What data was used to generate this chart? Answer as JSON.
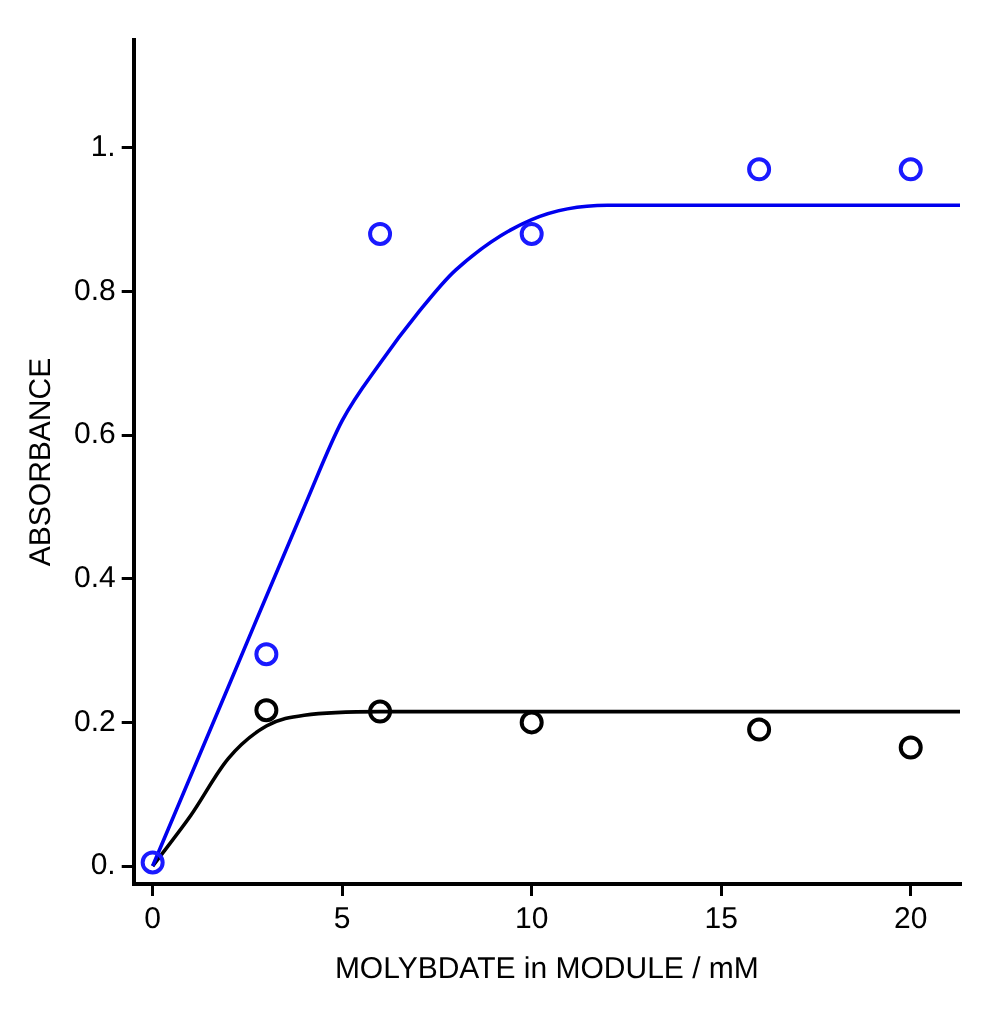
{
  "chart_data": {
    "type": "scatter",
    "xlabel": "MOLYBDATE in MODULE / mM",
    "ylabel": "ABSORBANCE",
    "xlim": [
      -0.5,
      21.3
    ],
    "ylim": [
      -0.025,
      1.15
    ],
    "xticks": [
      0,
      5,
      10,
      15,
      20
    ],
    "yticks": [
      {
        "value": 0,
        "label": "0."
      },
      0.2,
      0.4,
      0.6,
      0.8,
      {
        "value": 1,
        "label": "1."
      }
    ],
    "grid": false,
    "legend": false,
    "marker": "circle",
    "series": [
      {
        "color": "#1a1aff",
        "x": [
          0,
          3,
          6,
          10,
          16,
          20
        ],
        "values": [
          0.005,
          0.295,
          0.88,
          0.88,
          0.97,
          0.97
        ]
      },
      {
        "color": "#000000",
        "x": [
          3,
          6,
          10,
          16,
          20
        ],
        "values": [
          0.217,
          0.215,
          0.2,
          0.19,
          0.165
        ]
      },
      {
        "type": "line",
        "marker": "none",
        "color": "#0000ee",
        "x": [
          0,
          2,
          4,
          5,
          6,
          7,
          8,
          10,
          12,
          21.3
        ],
        "values": [
          0,
          0.25,
          0.5,
          0.62,
          0.7,
          0.77,
          0.83,
          0.9,
          0.92,
          0.92
        ]
      },
      {
        "type": "line",
        "marker": "none",
        "color": "#000000",
        "x": [
          0,
          1,
          2,
          3,
          4,
          6,
          21.3
        ],
        "values": [
          0,
          0.07,
          0.15,
          0.195,
          0.21,
          0.215,
          0.215
        ]
      }
    ]
  }
}
